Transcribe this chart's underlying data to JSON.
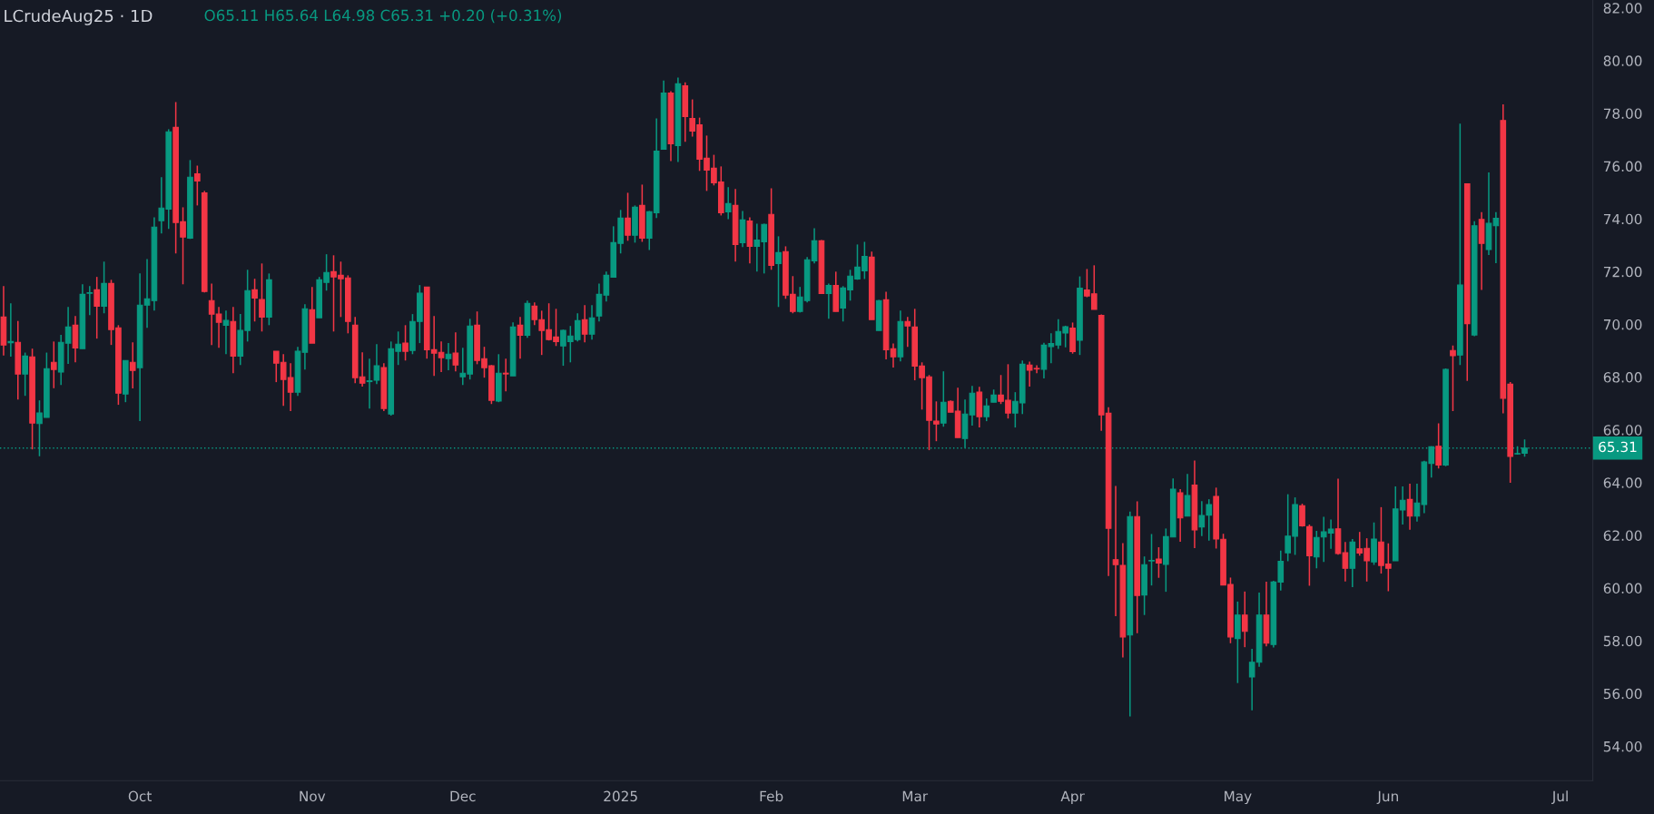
{
  "chart_data": {
    "type": "candlestick",
    "title": "LCrudeAug25 · 1D",
    "annotations": [
      "O65.11 H65.64 L64.98 C65.31 +0.20 (+0.31%)"
    ],
    "categories": [
      null,
      null,
      null,
      null,
      null,
      null,
      null,
      null,
      null,
      null,
      null,
      null,
      null,
      null,
      null,
      null,
      null,
      null,
      null,
      "Oct",
      null,
      null,
      null,
      null,
      null,
      null,
      null,
      null,
      null,
      null,
      null,
      null,
      null,
      null,
      null,
      null,
      null,
      null,
      null,
      null,
      null,
      null,
      null,
      "Nov",
      null,
      null,
      null,
      null,
      null,
      null,
      null,
      null,
      null,
      null,
      null,
      null,
      null,
      null,
      null,
      null,
      null,
      null,
      null,
      null,
      "Dec",
      null,
      null,
      null,
      null,
      null,
      null,
      null,
      null,
      null,
      null,
      null,
      null,
      null,
      null,
      null,
      null,
      null,
      null,
      null,
      null,
      null,
      "2025",
      null,
      null,
      null,
      null,
      null,
      null,
      null,
      null,
      null,
      null,
      null,
      null,
      null,
      null,
      null,
      null,
      null,
      null,
      null,
      null,
      "Feb",
      null,
      null,
      null,
      null,
      null,
      null,
      null,
      null,
      null,
      null,
      null,
      null,
      null,
      null,
      null,
      null,
      null,
      null,
      null,
      "Mar",
      null,
      null,
      null,
      null,
      null,
      null,
      null,
      null,
      null,
      null,
      null,
      null,
      null,
      null,
      null,
      null,
      null,
      null,
      null,
      null,
      null,
      "Apr",
      null,
      null,
      null,
      null,
      null,
      null,
      null,
      null,
      null,
      null,
      null,
      null,
      null,
      null,
      null,
      null,
      null,
      null,
      null,
      null,
      null,
      null,
      "May",
      null,
      null,
      null,
      null,
      null,
      null,
      null,
      null,
      null,
      null,
      null,
      null,
      null,
      null,
      null,
      null,
      null,
      null,
      null,
      null,
      "Jun",
      null,
      null,
      null,
      null,
      null,
      null,
      null,
      null,
      null,
      null,
      null,
      null,
      null,
      null,
      null,
      null,
      null,
      null,
      null,
      null,
      null,
      null,
      null,
      "Jul",
      null,
      null,
      null,
      null
    ],
    "ohlc": [
      [
        70.28,
        71.45,
        68.82,
        69.22
      ],
      [
        69.3,
        70.8,
        68.78,
        69.35
      ],
      [
        69.32,
        70.13,
        67.15,
        68.12
      ],
      [
        68.12,
        68.93,
        67.29,
        68.8
      ],
      [
        68.77,
        69.08,
        65.26,
        66.26
      ],
      [
        66.24,
        67.12,
        65.0,
        66.64
      ],
      [
        66.47,
        68.93,
        66.47,
        68.32
      ],
      [
        68.56,
        69.35,
        67.58,
        68.29
      ],
      [
        68.19,
        69.6,
        67.7,
        69.32
      ],
      [
        69.29,
        70.66,
        68.5,
        69.9
      ],
      [
        69.97,
        70.32,
        68.56,
        69.11
      ],
      [
        69.08,
        71.52,
        69.08,
        71.14
      ],
      [
        71.18,
        71.45,
        70.35,
        71.2
      ],
      [
        71.31,
        71.8,
        69.46,
        70.69
      ],
      [
        70.69,
        72.38,
        70.42,
        71.55
      ],
      [
        71.55,
        71.69,
        69.22,
        69.8
      ],
      [
        69.87,
        69.97,
        66.95,
        67.39
      ],
      [
        67.36,
        68.63,
        67.05,
        68.63
      ],
      [
        68.56,
        69.32,
        67.57,
        68.25
      ],
      [
        68.36,
        71.93,
        66.33,
        70.73
      ],
      [
        70.73,
        72.48,
        69.87,
        70.97
      ],
      [
        70.9,
        74.06,
        70.52,
        73.69
      ],
      [
        73.93,
        75.58,
        73.45,
        74.41
      ],
      [
        74.37,
        77.4,
        73.62,
        77.3
      ],
      [
        77.47,
        78.43,
        72.69,
        73.86
      ],
      [
        73.89,
        74.44,
        71.52,
        73.31
      ],
      [
        73.27,
        76.23,
        73.24,
        75.58
      ],
      [
        75.71,
        76.02,
        74.51,
        75.44
      ],
      [
        74.99,
        75.06,
        71.21,
        71.25
      ],
      [
        70.9,
        71.55,
        69.22,
        70.39
      ],
      [
        70.39,
        70.66,
        69.11,
        70.08
      ],
      [
        69.97,
        70.52,
        68.87,
        70.15
      ],
      [
        70.11,
        70.66,
        68.15,
        68.8
      ],
      [
        68.8,
        70.39,
        68.46,
        69.77
      ],
      [
        69.77,
        72.07,
        69.35,
        71.28
      ],
      [
        71.31,
        71.73,
        70.11,
        71.0
      ],
      [
        70.94,
        72.31,
        69.73,
        70.28
      ],
      [
        70.28,
        71.93,
        69.97,
        71.69
      ],
      [
        68.98,
        68.98,
        67.81,
        68.53
      ],
      [
        68.56,
        68.87,
        66.91,
        67.91
      ],
      [
        67.98,
        68.53,
        66.71,
        67.43
      ],
      [
        67.43,
        69.15,
        67.29,
        68.98
      ],
      [
        68.94,
        70.76,
        68.29,
        70.59
      ],
      [
        70.56,
        71.42,
        69.29,
        69.29
      ],
      [
        70.25,
        71.8,
        70.25,
        71.69
      ],
      [
        71.59,
        72.66,
        71.28,
        71.97
      ],
      [
        72.0,
        72.62,
        69.73,
        71.8
      ],
      [
        71.86,
        72.38,
        70.28,
        71.73
      ],
      [
        71.76,
        71.86,
        69.66,
        70.11
      ],
      [
        69.97,
        70.28,
        67.77,
        67.98
      ],
      [
        68.01,
        68.94,
        67.64,
        67.77
      ],
      [
        67.83,
        68.7,
        66.81,
        67.86
      ],
      [
        67.88,
        69.25,
        67.74,
        68.43
      ],
      [
        68.36,
        68.53,
        66.71,
        66.81
      ],
      [
        66.6,
        69.35,
        66.54,
        69.08
      ],
      [
        68.98,
        69.73,
        68.46,
        69.25
      ],
      [
        69.29,
        69.97,
        68.63,
        68.98
      ],
      [
        69.01,
        70.39,
        68.87,
        70.11
      ],
      [
        70.11,
        71.49,
        69.29,
        71.18
      ],
      [
        71.42,
        71.42,
        68.7,
        69.04
      ],
      [
        69.04,
        70.32,
        68.05,
        68.91
      ],
      [
        68.94,
        69.35,
        68.19,
        68.74
      ],
      [
        68.7,
        69.29,
        68.26,
        68.87
      ],
      [
        68.91,
        69.7,
        68.22,
        68.46
      ],
      [
        68.01,
        69.11,
        67.7,
        68.15
      ],
      [
        68.12,
        70.21,
        67.91,
        69.94
      ],
      [
        69.97,
        70.49,
        68.49,
        68.63
      ],
      [
        68.7,
        69.15,
        67.98,
        68.36
      ],
      [
        68.43,
        68.46,
        66.98,
        67.12
      ],
      [
        67.09,
        68.87,
        67.05,
        68.15
      ],
      [
        68.15,
        68.7,
        67.46,
        68.12
      ],
      [
        68.05,
        70.08,
        68.05,
        69.9
      ],
      [
        69.97,
        70.28,
        68.7,
        69.59
      ],
      [
        69.59,
        70.9,
        69.49,
        70.8
      ],
      [
        70.69,
        70.83,
        69.97,
        70.18
      ],
      [
        70.18,
        70.52,
        68.84,
        69.77
      ],
      [
        69.8,
        70.8,
        69.39,
        69.42
      ],
      [
        69.52,
        70.59,
        69.18,
        69.35
      ],
      [
        69.18,
        69.8,
        68.43,
        69.77
      ],
      [
        69.35,
        69.94,
        68.56,
        69.56
      ],
      [
        69.42,
        70.42,
        69.35,
        70.14
      ],
      [
        70.18,
        70.73,
        69.32,
        69.63
      ],
      [
        69.63,
        70.73,
        69.42,
        70.25
      ],
      [
        70.32,
        71.55,
        70.11,
        71.14
      ],
      [
        71.11,
        72.0,
        70.87,
        71.86
      ],
      [
        71.79,
        73.72,
        71.79,
        73.1
      ],
      [
        73.07,
        74.34,
        72.69,
        74.03
      ],
      [
        74.03,
        74.99,
        73.17,
        73.38
      ],
      [
        73.38,
        74.51,
        73.1,
        74.44
      ],
      [
        74.51,
        75.3,
        73.13,
        73.27
      ],
      [
        73.27,
        74.3,
        72.82,
        74.27
      ],
      [
        74.23,
        77.81,
        74.03,
        76.57
      ],
      [
        76.64,
        79.25,
        76.64,
        78.77
      ],
      [
        78.77,
        78.84,
        76.19,
        76.85
      ],
      [
        76.78,
        79.36,
        76.16,
        79.12
      ],
      [
        79.05,
        79.18,
        76.92,
        77.88
      ],
      [
        77.81,
        78.53,
        77.12,
        77.33
      ],
      [
        77.57,
        77.84,
        75.82,
        76.26
      ],
      [
        76.3,
        77.16,
        75.06,
        75.85
      ],
      [
        75.92,
        76.43,
        75.27,
        75.37
      ],
      [
        75.4,
        75.99,
        74.13,
        74.23
      ],
      [
        74.27,
        75.2,
        73.99,
        74.58
      ],
      [
        74.51,
        75.13,
        72.38,
        73.03
      ],
      [
        73.1,
        74.3,
        72.93,
        73.96
      ],
      [
        73.92,
        74.06,
        72.31,
        72.96
      ],
      [
        72.96,
        73.82,
        72.0,
        73.2
      ],
      [
        73.13,
        73.82,
        71.93,
        73.79
      ],
      [
        74.17,
        75.16,
        72.07,
        72.24
      ],
      [
        72.31,
        73.34,
        70.66,
        72.72
      ],
      [
        72.76,
        72.96,
        70.97,
        71.11
      ],
      [
        71.14,
        71.83,
        70.42,
        70.49
      ],
      [
        70.49,
        71.42,
        70.45,
        71.04
      ],
      [
        70.9,
        72.55,
        70.83,
        72.45
      ],
      [
        72.41,
        73.65,
        72.31,
        73.17
      ],
      [
        73.17,
        73.2,
        71.17,
        71.17
      ],
      [
        71.17,
        71.55,
        70.21,
        71.48
      ],
      [
        71.48,
        72.0,
        70.49,
        70.49
      ],
      [
        70.62,
        71.45,
        70.11,
        71.38
      ],
      [
        71.31,
        72.07,
        70.9,
        71.83
      ],
      [
        71.72,
        73.03,
        71.69,
        72.17
      ],
      [
        72.03,
        73.13,
        71.72,
        72.58
      ],
      [
        72.55,
        72.76,
        70.18,
        70.18
      ],
      [
        69.77,
        70.93,
        69.77,
        70.9
      ],
      [
        70.93,
        71.24,
        68.67,
        69.04
      ],
      [
        69.08,
        69.28,
        68.36,
        68.77
      ],
      [
        68.77,
        70.52,
        68.6,
        70.11
      ],
      [
        70.11,
        70.28,
        69.15,
        69.94
      ],
      [
        69.9,
        70.59,
        67.88,
        68.42
      ],
      [
        68.42,
        68.56,
        66.77,
        67.98
      ],
      [
        68.01,
        68.08,
        65.23,
        66.36
      ],
      [
        66.33,
        67.08,
        65.57,
        66.22
      ],
      [
        66.26,
        68.22,
        66.12,
        67.05
      ],
      [
        67.08,
        67.12,
        66.67,
        66.67
      ],
      [
        66.71,
        67.6,
        65.71,
        65.71
      ],
      [
        65.67,
        67.15,
        65.32,
        66.6
      ],
      [
        66.57,
        67.67,
        66.16,
        67.39
      ],
      [
        67.43,
        67.63,
        66.09,
        66.5
      ],
      [
        66.5,
        67.19,
        66.33,
        66.91
      ],
      [
        67.05,
        67.53,
        67.05,
        67.32
      ],
      [
        67.32,
        68.08,
        66.98,
        67.08
      ],
      [
        67.12,
        68.49,
        66.43,
        66.64
      ],
      [
        66.64,
        67.43,
        66.09,
        67.08
      ],
      [
        67.02,
        68.63,
        66.6,
        68.49
      ],
      [
        68.46,
        68.59,
        67.64,
        68.26
      ],
      [
        68.33,
        68.45,
        68.15,
        68.31
      ],
      [
        68.3,
        69.3,
        67.95,
        69.21
      ],
      [
        69.16,
        69.66,
        68.53,
        69.27
      ],
      [
        69.22,
        70.2,
        69.07,
        69.73
      ],
      [
        69.67,
        69.95,
        69.13,
        69.91
      ],
      [
        69.86,
        70.07,
        68.89,
        68.97
      ],
      [
        69.4,
        71.82,
        68.84,
        71.37
      ],
      [
        71.3,
        72.1,
        71.03,
        71.08
      ],
      [
        71.16,
        72.24,
        70.57,
        70.57
      ],
      [
        70.34,
        70.38,
        65.96,
        66.57
      ],
      [
        66.63,
        66.86,
        60.46,
        62.27
      ],
      [
        61.08,
        63.87,
        58.94,
        60.89
      ],
      [
        60.86,
        61.71,
        57.37,
        58.15
      ],
      [
        58.22,
        62.9,
        55.13,
        62.71
      ],
      [
        62.71,
        63.29,
        58.29,
        59.72
      ],
      [
        59.74,
        61.2,
        58.98,
        60.89
      ],
      [
        61.03,
        62.05,
        60.1,
        61.05
      ],
      [
        61.1,
        61.55,
        60.39,
        60.95
      ],
      [
        60.9,
        62.26,
        59.86,
        61.95
      ],
      [
        61.94,
        64.16,
        61.94,
        63.75
      ],
      [
        63.61,
        63.75,
        61.76,
        62.66
      ],
      [
        62.73,
        64.33,
        62.73,
        63.51
      ],
      [
        63.91,
        64.84,
        61.52,
        62.21
      ],
      [
        62.32,
        63.3,
        61.97,
        62.75
      ],
      [
        62.77,
        63.37,
        61.8,
        63.17
      ],
      [
        63.48,
        63.81,
        61.5,
        61.86
      ],
      [
        61.85,
        62.06,
        60.12,
        60.12
      ],
      [
        60.14,
        60.4,
        57.91,
        58.15
      ],
      [
        58.09,
        59.49,
        56.4,
        58.98
      ],
      [
        58.98,
        59.87,
        57.76,
        58.36
      ],
      [
        56.63,
        57.7,
        55.37,
        57.19
      ],
      [
        57.19,
        59.83,
        57.02,
        58.98
      ],
      [
        58.98,
        60.24,
        57.79,
        57.91
      ],
      [
        57.86,
        60.28,
        57.75,
        60.23
      ],
      [
        60.23,
        61.42,
        59.91,
        61.02
      ],
      [
        61.34,
        63.56,
        61.02,
        61.97
      ],
      [
        61.97,
        63.44,
        61.26,
        63.17
      ],
      [
        63.12,
        63.2,
        62.33,
        62.36
      ],
      [
        62.33,
        62.41,
        60.09,
        61.23
      ],
      [
        61.18,
        62.17,
        60.75,
        61.92
      ],
      [
        61.94,
        62.7,
        60.99,
        62.13
      ],
      [
        62.09,
        62.6,
        61.49,
        62.24
      ],
      [
        62.25,
        64.15,
        61.27,
        61.31
      ],
      [
        61.34,
        61.75,
        60.25,
        60.75
      ],
      [
        60.75,
        61.86,
        60.04,
        61.75
      ],
      [
        61.49,
        62.13,
        61.23,
        61.33
      ],
      [
        61.51,
        61.89,
        60.25,
        61.04
      ],
      [
        60.99,
        62.49,
        60.88,
        61.86
      ],
      [
        61.75,
        63.07,
        60.55,
        60.86
      ],
      [
        60.91,
        61.7,
        59.88,
        60.75
      ],
      [
        61.04,
        63.86,
        61.04,
        63.0
      ],
      [
        62.96,
        63.86,
        62.41,
        63.33
      ],
      [
        63.36,
        63.96,
        62.21,
        62.73
      ],
      [
        62.73,
        63.96,
        62.52,
        63.23
      ],
      [
        63.17,
        64.83,
        62.84,
        64.78
      ],
      [
        64.73,
        65.38,
        64.19,
        65.36
      ],
      [
        65.38,
        66.25,
        64.54,
        64.67
      ],
      [
        64.67,
        68.33,
        64.62,
        68.29
      ],
      [
        69.01,
        69.2,
        66.71,
        68.81
      ],
      [
        68.84,
        77.61,
        68.46,
        71.49
      ],
      [
        75.33,
        75.33,
        67.86,
        70.03
      ],
      [
        69.6,
        73.91,
        69.55,
        73.74
      ],
      [
        73.98,
        74.26,
        71.31,
        73.07
      ],
      [
        72.84,
        75.76,
        72.63,
        73.83
      ],
      [
        73.74,
        74.26,
        72.32,
        74.02
      ],
      [
        77.73,
        78.34,
        66.63,
        67.2
      ],
      [
        67.73,
        67.81,
        63.99,
        64.99
      ],
      [
        65.09,
        65.38,
        65.06,
        65.1
      ],
      [
        65.11,
        65.64,
        64.98,
        65.31
      ],
      null,
      null,
      null,
      null,
      null,
      null,
      null,
      null,
      null
    ],
    "colors": [
      "#f23645",
      "#089981",
      "#f23645",
      "#089981",
      "#f23645",
      "#089981",
      "#089981",
      "#f23645",
      "#089981",
      "#089981",
      "#f23645",
      "#089981",
      "#089981",
      "#f23645",
      "#089981",
      "#f23645",
      "#f23645",
      "#089981",
      "#f23645",
      "#089981",
      "#089981",
      "#089981",
      "#089981",
      "#089981",
      "#f23645",
      "#f23645",
      "#089981",
      "#f23645",
      "#f23645",
      "#f23645",
      "#f23645",
      "#089981",
      "#f23645",
      "#089981",
      "#089981",
      "#f23645",
      "#f23645",
      "#089981",
      "#f23645",
      "#f23645",
      "#f23645",
      "#089981",
      "#089981",
      "#f23645",
      "#089981",
      "#089981",
      "#f23645",
      "#f23645",
      "#f23645",
      "#f23645",
      "#f23645",
      "#089981",
      "#089981",
      "#f23645",
      "#089981",
      "#089981",
      "#f23645",
      "#089981",
      "#089981",
      "#f23645",
      "#f23645",
      "#f23645",
      "#089981",
      "#f23645",
      "#089981",
      "#089981",
      "#f23645",
      "#f23645",
      "#f23645",
      "#089981",
      "#f23645",
      "#089981",
      "#f23645",
      "#089981",
      "#f23645",
      "#f23645",
      "#f23645",
      "#f23645",
      "#089981",
      "#089981",
      "#089981",
      "#f23645",
      "#089981",
      "#089981",
      "#089981",
      "#089981",
      "#089981",
      "#f23645",
      "#089981",
      "#f23645",
      "#089981",
      "#089981",
      "#089981",
      "#f23645",
      "#089981",
      "#f23645",
      "#f23645",
      "#f23645",
      "#f23645",
      "#f23645",
      "#f23645",
      "#089981",
      "#f23645",
      "#089981",
      "#f23645",
      "#089981",
      "#089981",
      "#f23645",
      "#089981",
      "#f23645",
      "#f23645",
      "#089981",
      "#089981",
      "#089981",
      "#f23645",
      "#089981",
      "#f23645",
      "#089981",
      "#089981",
      "#089981",
      "#089981",
      "#f23645",
      "#089981",
      "#f23645",
      "#f23645",
      "#089981",
      "#f23645",
      "#f23645",
      "#f23645",
      "#f23645",
      "#f23645",
      "#089981",
      "#f23645",
      "#f23645",
      "#089981",
      "#089981",
      "#f23645",
      "#089981",
      "#089981",
      "#f23645",
      "#f23645",
      "#089981",
      "#089981",
      "#f23645",
      "#f23645",
      "#089981",
      "#089981",
      "#089981",
      "#089981",
      "#f23645",
      "#089981",
      "#f23645",
      "#f23645",
      "#f23645",
      "#f23645",
      "#f23645",
      "#f23645",
      "#089981",
      "#f23645",
      "#089981",
      "#089981",
      "#f23645",
      "#089981",
      "#089981",
      "#f23645",
      "#089981",
      "#f23645",
      "#089981",
      "#089981",
      "#f23645",
      "#f23645",
      "#f23645",
      "#089981",
      "#f23645",
      "#089981",
      "#089981",
      "#f23645",
      "#089981",
      "#089981",
      "#089981",
      "#089981",
      "#f23645",
      "#f23645",
      "#089981",
      "#089981",
      "#089981",
      "#f23645",
      "#f23645",
      "#089981",
      "#f23645",
      "#f23645",
      "#089981",
      "#f23645",
      "#f23645",
      "#089981",
      "#089981",
      "#f23645",
      "#089981",
      "#089981",
      "#089981",
      "#f23645",
      "#089981",
      "#f23645",
      "#089981",
      "#f23645",
      "#089981",
      "#f23645",
      "#089981",
      "#089981",
      "#f23645",
      "#f23645",
      "#089981",
      "#089981",
      null,
      null,
      null,
      null,
      null,
      null,
      null,
      null,
      null
    ],
    "ylim": [
      52.7,
      82.3
    ],
    "yticks": [
      {
        "value": 54,
        "label": "54.00"
      },
      {
        "value": 56,
        "label": "56.00"
      },
      {
        "value": 58,
        "label": "58.00"
      },
      {
        "value": 60,
        "label": "60.00"
      },
      {
        "value": 62,
        "label": "62.00"
      },
      {
        "value": 64,
        "label": "64.00"
      },
      {
        "value": 66,
        "label": "66.00"
      },
      {
        "value": 68,
        "label": "68.00"
      },
      {
        "value": 70,
        "label": "70.00"
      },
      {
        "value": 72,
        "label": "72.00"
      },
      {
        "value": 74,
        "label": "74.00"
      },
      {
        "value": 76,
        "label": "76.00"
      },
      {
        "value": 78,
        "label": "78.00"
      },
      {
        "value": 80,
        "label": "80.00"
      },
      {
        "value": 82,
        "label": "82.00"
      }
    ],
    "ref_lines": [
      {
        "axis": "y",
        "value": 65.31,
        "label": "65.31",
        "color": "#089981",
        "line_style": "dotted"
      }
    ]
  }
}
